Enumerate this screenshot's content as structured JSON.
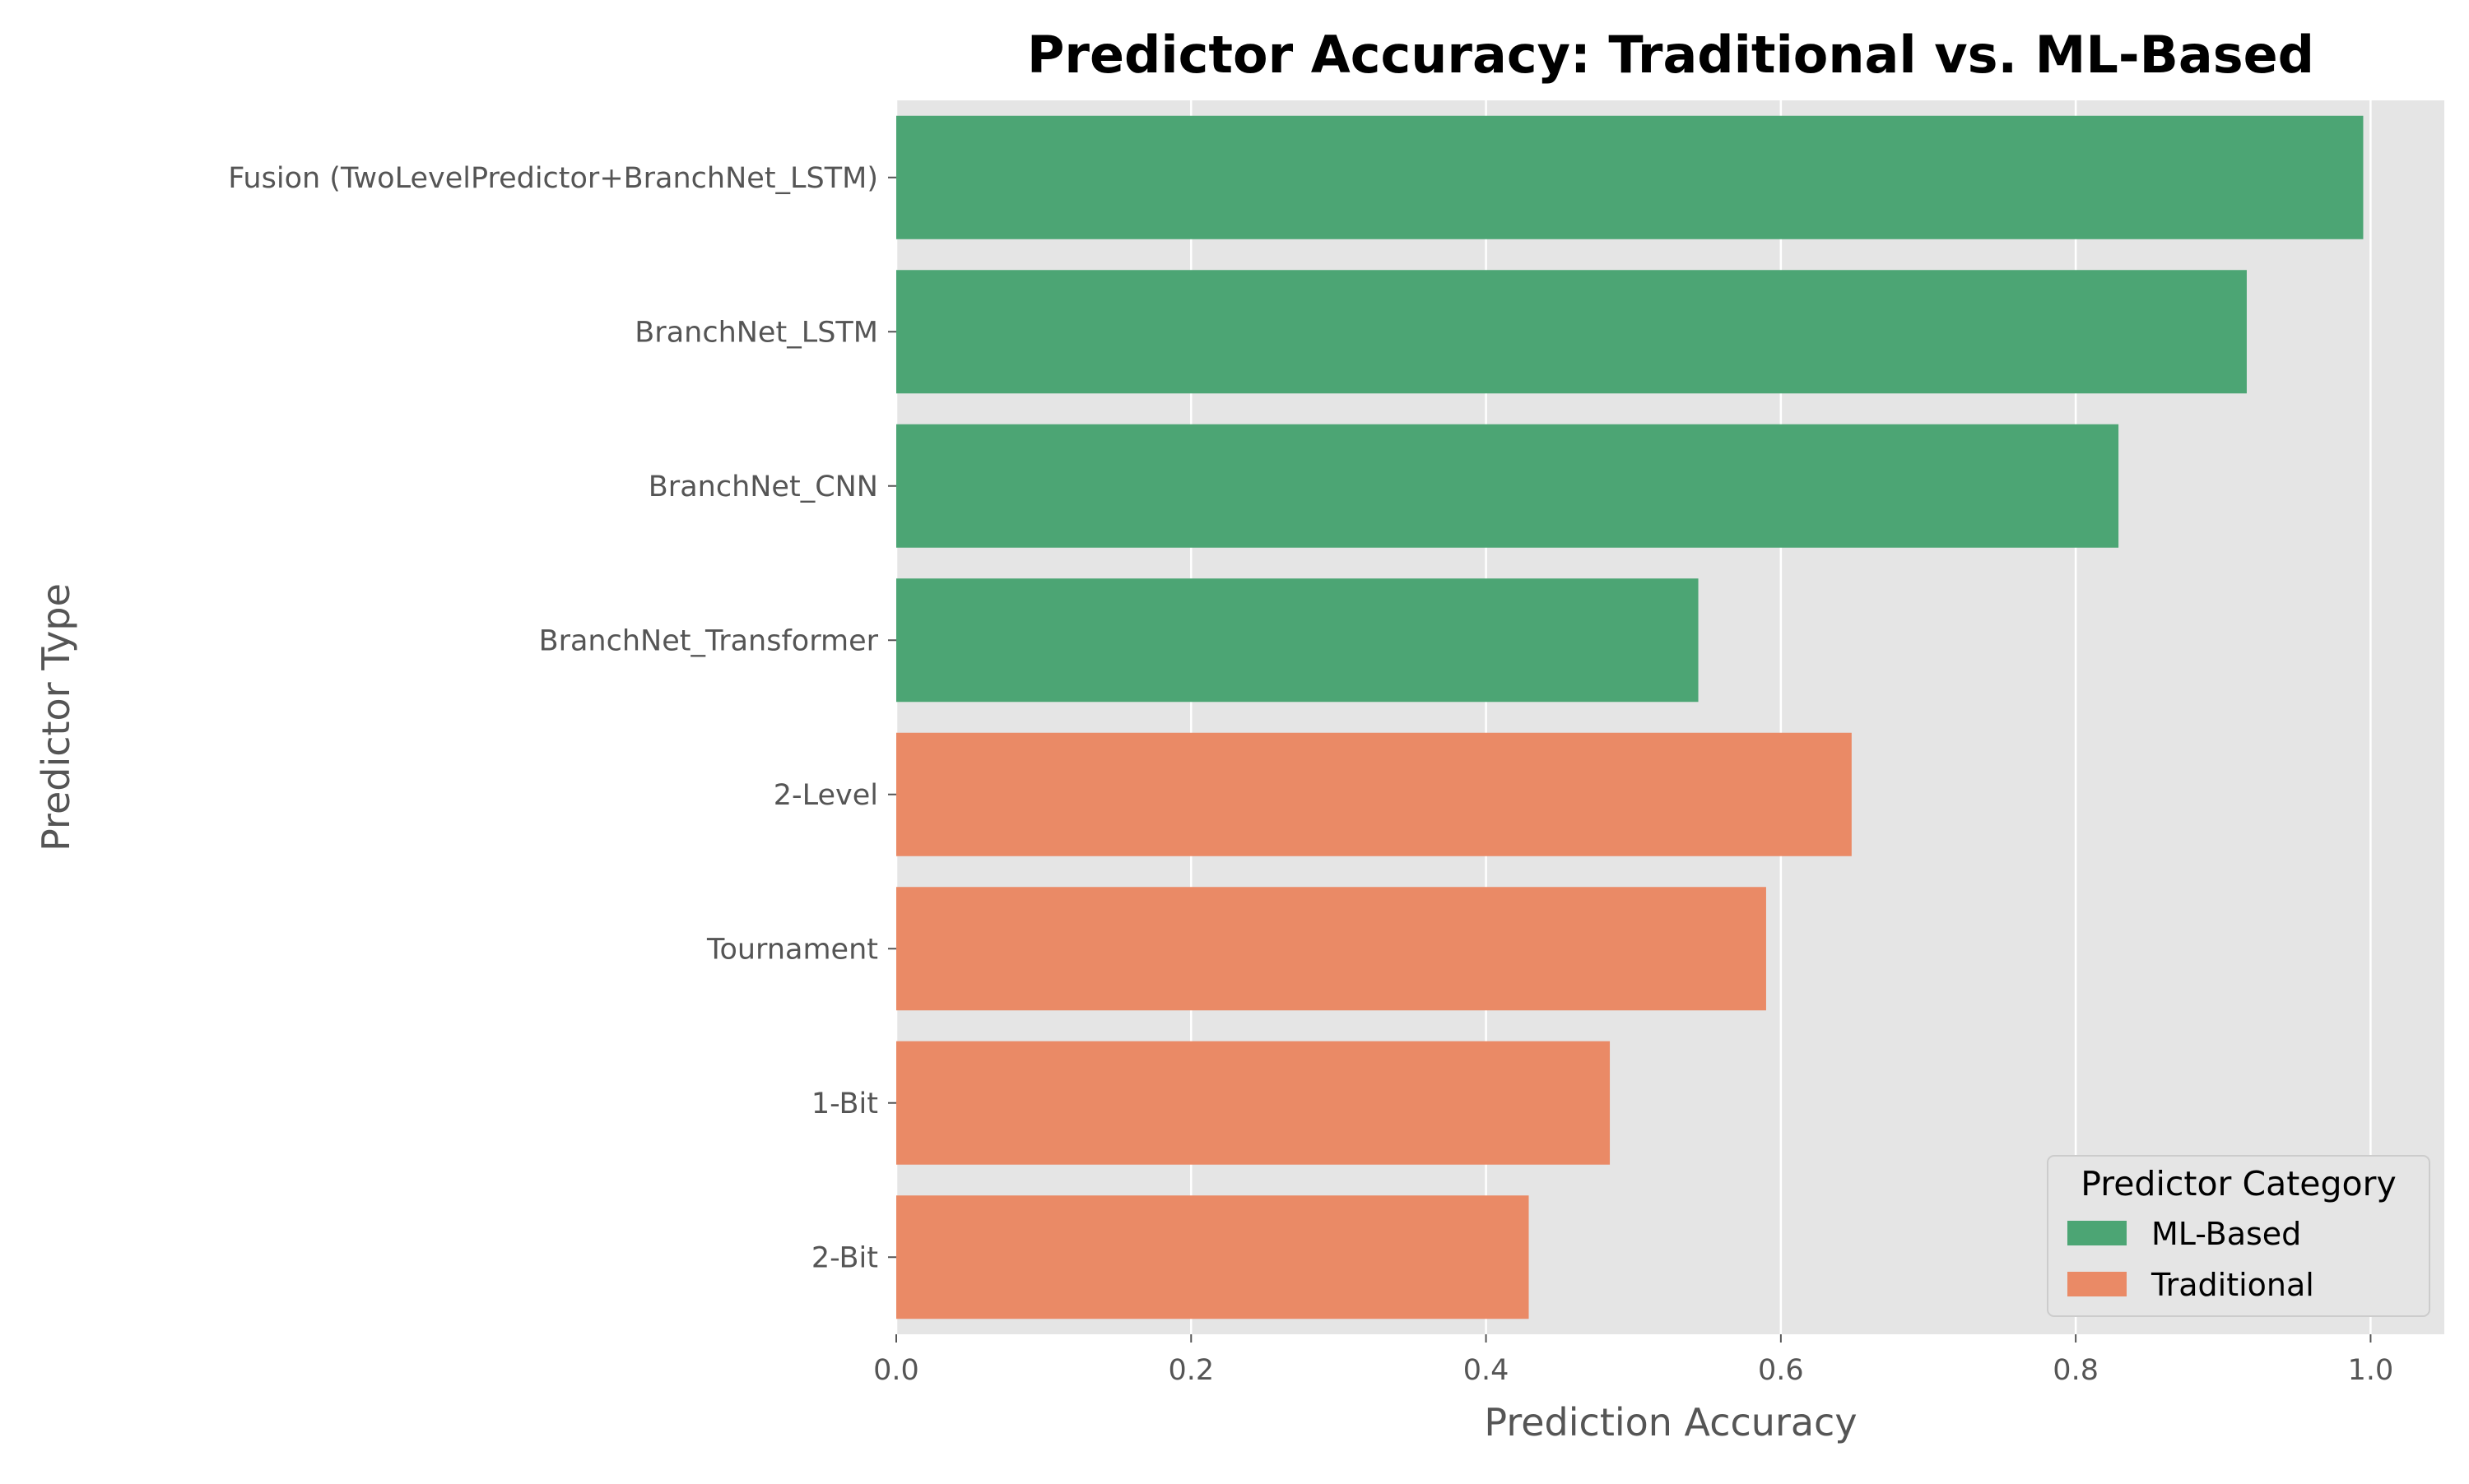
{
  "chart_data": {
    "type": "bar",
    "orientation": "horizontal",
    "title": "Predictor Accuracy: Traditional vs. ML-Based",
    "xlabel": "Prediction Accuracy",
    "ylabel": "Predictor Type",
    "xlim": [
      0,
      1.05
    ],
    "xticks": [
      0.0,
      0.2,
      0.4,
      0.6,
      0.8,
      1.0
    ],
    "xtick_labels": [
      "0.0",
      "0.2",
      "0.4",
      "0.6",
      "0.8",
      "1.0"
    ],
    "grid": true,
    "categories": [
      "Fusion (TwoLevelPredictor+BranchNet_LSTM)",
      "BranchNet_LSTM",
      "BranchNet_CNN",
      "BranchNet_Transformer",
      "2-Level",
      "Tournament",
      "1-Bit",
      "2-Bit"
    ],
    "values": [
      0.995,
      0.916,
      0.829,
      0.544,
      0.648,
      0.59,
      0.484,
      0.429
    ],
    "category_group": [
      "ML-Based",
      "ML-Based",
      "ML-Based",
      "ML-Based",
      "Traditional",
      "Traditional",
      "Traditional",
      "Traditional"
    ],
    "legend": {
      "title": "Predictor Category",
      "placement": "bottom-right",
      "entries": [
        {
          "name": "ML-Based",
          "color": "#4ca574"
        },
        {
          "name": "Traditional",
          "color": "#ea8a66"
        }
      ]
    },
    "colors": {
      "plot_background": "#e5e5e5",
      "grid": "#ffffff",
      "ML-Based": "#4ca574",
      "Traditional": "#ea8a66"
    }
  }
}
